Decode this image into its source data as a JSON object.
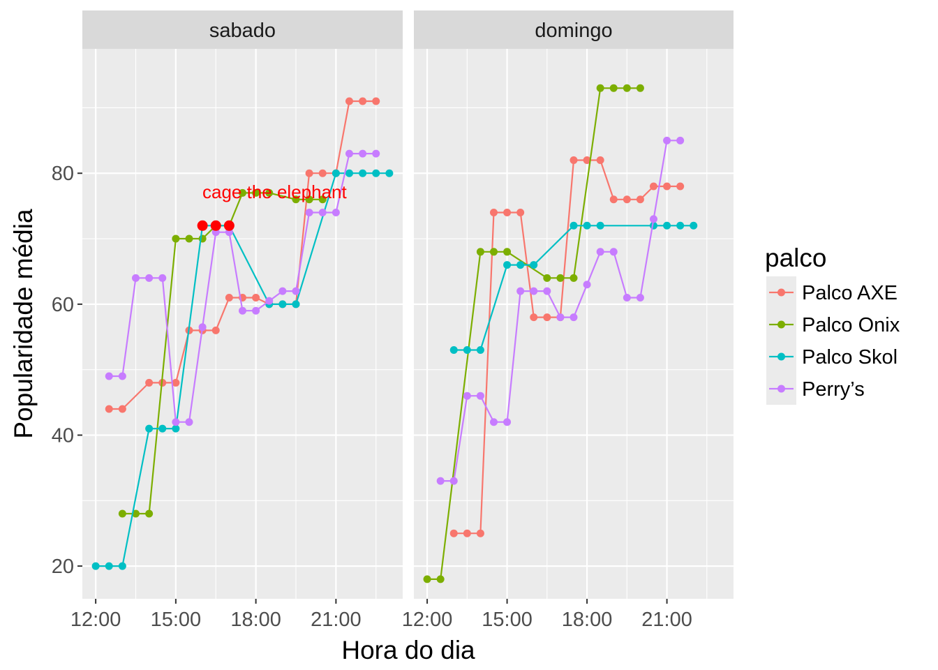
{
  "chart_data": {
    "type": "line",
    "xlabel": "Hora do dia",
    "ylabel": "Popularidade média",
    "ylim": [
      15,
      99
    ],
    "xlim_hours": [
      11.5,
      23.5
    ],
    "y_ticks": [
      20,
      40,
      60,
      80
    ],
    "x_ticks": [
      {
        "h": 12,
        "label": "12:00"
      },
      {
        "h": 15,
        "label": "15:00"
      },
      {
        "h": 18,
        "label": "18:00"
      },
      {
        "h": 21,
        "label": "21:00"
      }
    ],
    "legend": {
      "title": "palco",
      "entries": [
        "Palco AXE",
        "Palco Onix",
        "Palco Skol",
        "Perry’s"
      ]
    },
    "colors": {
      "Palco AXE": "#F8766D",
      "Palco Onix": "#7CAE00",
      "Palco Skol": "#00BFC4",
      "Perry’s": "#C77CFF",
      "highlight": "#FF0000"
    },
    "panels": [
      {
        "name": "sabado",
        "series": [
          {
            "name": "Palco AXE",
            "x": [
              12.5,
              13.0,
              14.0,
              14.5,
              15.0,
              15.5,
              16.0,
              16.5,
              17.0,
              17.5,
              18.0,
              18.5,
              19.0,
              19.5,
              20.0,
              20.5,
              21.0,
              21.5,
              22.0,
              22.5
            ],
            "y": [
              44,
              44,
              48,
              48,
              48,
              56,
              56,
              56,
              61,
              61,
              61,
              60,
              60,
              60,
              80,
              80,
              80,
              91,
              91,
              91
            ]
          },
          {
            "name": "Palco Onix",
            "x": [
              13.0,
              13.5,
              14.0,
              15.0,
              15.5,
              16.0,
              16.5,
              17.0,
              17.5,
              18.0,
              18.5,
              19.5,
              20.0,
              20.5
            ],
            "y": [
              28,
              28,
              28,
              70,
              70,
              70,
              72,
              72,
              77,
              77,
              77,
              76,
              76,
              76
            ]
          },
          {
            "name": "Palco Skol",
            "x": [
              12.0,
              12.5,
              13.0,
              14.0,
              14.5,
              15.0,
              16.0,
              17.0,
              18.5,
              19.0,
              19.5,
              21.0,
              21.5,
              22.0,
              22.5,
              23.0
            ],
            "y": [
              20,
              20,
              20,
              41,
              41,
              41,
              72,
              72,
              60,
              60,
              60,
              80,
              80,
              80,
              80,
              80
            ]
          },
          {
            "name": "Perry’s",
            "x": [
              12.5,
              13.0,
              13.5,
              14.0,
              14.5,
              15.0,
              15.5,
              16.0,
              16.5,
              17.0,
              17.5,
              18.0,
              18.5,
              19.0,
              19.5,
              20.0,
              20.5,
              21.0,
              21.5,
              22.0,
              22.5
            ],
            "y": [
              49,
              49,
              64,
              64,
              64,
              42,
              42,
              56.5,
              71,
              71,
              59,
              59,
              60.5,
              62,
              62,
              74,
              74,
              74,
              83,
              83,
              83
            ]
          }
        ],
        "highlight": {
          "x": [
            16.0,
            16.5,
            17.0
          ],
          "y": [
            72,
            72,
            72
          ]
        },
        "annotation": {
          "text": "cage the elephant",
          "x": 16.0,
          "y": 73.7
        }
      },
      {
        "name": "domingo",
        "series": [
          {
            "name": "Palco AXE",
            "x": [
              13.0,
              13.5,
              14.0,
              14.5,
              15.0,
              15.5,
              16.0,
              16.5,
              17.0,
              17.5,
              18.0,
              18.5,
              19.0,
              19.5,
              20.0,
              20.5,
              21.0,
              21.5
            ],
            "y": [
              25,
              25,
              25,
              74,
              74,
              74,
              58,
              58,
              58,
              82,
              82,
              82,
              76,
              76,
              76,
              78,
              78,
              78
            ]
          },
          {
            "name": "Palco Onix",
            "x": [
              12.0,
              12.5,
              14.0,
              14.5,
              15.0,
              16.5,
              17.0,
              17.5,
              18.5,
              19.0,
              19.5,
              20.0
            ],
            "y": [
              18,
              18,
              68,
              68,
              68,
              64,
              64,
              64,
              93,
              93,
              93,
              93
            ]
          },
          {
            "name": "Palco Skol",
            "x": [
              13.0,
              13.5,
              14.0,
              15.0,
              15.5,
              16.0,
              17.5,
              18.0,
              18.5,
              20.5,
              21.0,
              21.5,
              22.0
            ],
            "y": [
              53,
              53,
              53,
              66,
              66,
              66,
              72,
              72,
              72,
              72,
              72,
              72,
              72
            ]
          },
          {
            "name": "Perry’s",
            "x": [
              12.5,
              13.0,
              13.5,
              14.0,
              14.5,
              15.0,
              15.5,
              16.0,
              16.5,
              17.0,
              17.5,
              18.0,
              18.5,
              19.0,
              19.5,
              20.0,
              20.5,
              21.0,
              21.5
            ],
            "y": [
              33,
              33,
              46,
              46,
              42,
              42,
              62,
              62,
              62,
              58,
              58,
              63,
              68,
              68,
              61,
              61,
              73,
              85,
              85
            ]
          }
        ]
      }
    ]
  }
}
